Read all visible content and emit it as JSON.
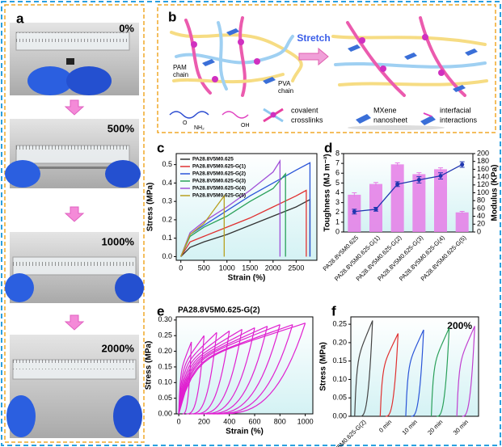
{
  "panel_a": {
    "label": "a",
    "strain_labels": [
      "0%",
      "500%",
      "1000%",
      "2000%"
    ]
  },
  "panel_b": {
    "label": "b",
    "stretch": "Stretch",
    "pam_chain": [
      "PAM",
      "chain"
    ],
    "pva_chain": [
      "PVA",
      "chain"
    ],
    "chem_labels": [
      "O",
      "NH₂",
      "OH"
    ],
    "legend": [
      [
        "covalent",
        "crosslinks"
      ],
      [
        "MXene",
        "nanosheet"
      ],
      [
        "interfacial",
        "interactions"
      ]
    ]
  },
  "chart_data": [
    {
      "type": "line",
      "label": "c",
      "ylabel": "Stress (MPa)",
      "xlabel": "Strain (%)",
      "xlim": [
        -100,
        2950
      ],
      "xticks": [
        0,
        500,
        1000,
        1500,
        2000,
        2500
      ],
      "ylim": [
        -0.02,
        0.56
      ],
      "yticks": [
        {
          "value": 0,
          "label": "0.0"
        },
        0.1,
        0.2,
        0.3,
        0.4,
        0.5
      ],
      "legend": "upper left",
      "series": [
        {
          "name": "PA28.8V5M0.625",
          "color": "#333333",
          "x": [
            0,
            200,
            500,
            1000,
            1500,
            2000,
            2500,
            2800,
            2800
          ],
          "values": [
            0,
            0.05,
            0.08,
            0.12,
            0.17,
            0.22,
            0.27,
            0.31,
            0
          ]
        },
        {
          "name": "PA28.8V5M0.625-G(1)",
          "color": "#e03030",
          "x": [
            0,
            200,
            500,
            1000,
            1500,
            2000,
            2500,
            2720,
            2720
          ],
          "values": [
            0,
            0.08,
            0.11,
            0.16,
            0.21,
            0.27,
            0.33,
            0.36,
            0
          ]
        },
        {
          "name": "PA28.8V5M0.625-G(2)",
          "color": "#2a55d8",
          "x": [
            0,
            200,
            500,
            1000,
            1500,
            2000,
            2500,
            2800,
            2800
          ],
          "values": [
            0,
            0.12,
            0.17,
            0.25,
            0.33,
            0.4,
            0.47,
            0.51,
            0
          ]
        },
        {
          "name": "PA28.8V5M0.625-G(3)",
          "color": "#2aa05a",
          "x": [
            0,
            200,
            500,
            1000,
            1500,
            2000,
            2270,
            2270
          ],
          "values": [
            0,
            0.11,
            0.16,
            0.22,
            0.3,
            0.37,
            0.45,
            0
          ]
        },
        {
          "name": "PA28.8V5M0.625-G(4)",
          "color": "#a050d8",
          "x": [
            0,
            200,
            500,
            1000,
            1500,
            2000,
            2150,
            2150
          ],
          "values": [
            0,
            0.13,
            0.19,
            0.27,
            0.36,
            0.46,
            0.52,
            0
          ]
        },
        {
          "name": "PA28.8V5M0.625-G(5)",
          "color": "#b8a020",
          "x": [
            0,
            200,
            500,
            940,
            940
          ],
          "values": [
            0,
            0.12,
            0.18,
            0.33,
            0
          ]
        }
      ]
    },
    {
      "type": "bar",
      "label": "d",
      "ylabel": "Toughness (MJ m⁻³)",
      "y2label": "Modulus (KPa)",
      "categories": [
        "PA28.8V5M0.625",
        "PA28.8V5M0.625-G(1)",
        "PA28.8V5M0.625-G(2)",
        "PA28.8V5M0.625-G(3)",
        "PA28.8V5M0.625-G(4)",
        "PA28.8V5M0.625-G(5)"
      ],
      "ylim": [
        0,
        8
      ],
      "yticks": [
        0,
        1,
        2,
        3,
        4,
        5,
        6,
        7,
        8
      ],
      "y2lim": [
        0,
        200
      ],
      "y2ticks": [
        0,
        20,
        40,
        60,
        80,
        100,
        120,
        140,
        160,
        180,
        200
      ],
      "series": [
        {
          "kind": "bar",
          "color": "#e57be6",
          "values": [
            3.8,
            4.9,
            6.9,
            5.9,
            6.4,
            2.0
          ],
          "errors": [
            0.2,
            0.15,
            0.15,
            0.15,
            0.15,
            0.1
          ]
        },
        {
          "kind": "line",
          "axis": "y2",
          "color": "#1f36b0",
          "values": [
            52,
            58,
            122,
            133,
            143,
            172
          ],
          "errors": [
            6,
            5,
            6,
            8,
            8,
            7
          ]
        }
      ]
    },
    {
      "type": "hysteresis",
      "label": "e",
      "title": "PA28.8V5M0.625-G(2)",
      "ylabel": "Stress (MPa)",
      "xlabel": "Strain (%)",
      "xlim": [
        -20,
        1060
      ],
      "xticks": [
        0,
        200,
        400,
        600,
        800,
        1000
      ],
      "ylim": [
        0,
        0.31
      ],
      "yticks": [
        {
          "value": 0,
          "label": "0.00"
        },
        0.05,
        {
          "value": 0.1,
          "label": "0.10"
        },
        0.15,
        {
          "value": 0.2,
          "label": "0.20"
        },
        0.25,
        {
          "value": 0.3,
          "label": "0.30"
        }
      ],
      "series": [
        {
          "color": "#e020d0",
          "x": [
            100,
            200,
            300,
            400,
            500,
            600,
            700,
            800,
            900,
            1000
          ],
          "values": [
            0.23,
            0.25,
            0.26,
            0.265,
            0.27,
            0.275,
            0.28,
            0.285,
            0.285,
            0.29
          ]
        }
      ]
    },
    {
      "type": "hysteresis",
      "label": "f",
      "annotation": "200%",
      "ylabel": "Stress (MPa)",
      "categories": [
        "PA28.8V5M0.625-G(2)",
        "0 min",
        "10 min",
        "20 min",
        "30 min"
      ],
      "ylim": [
        0,
        0.27
      ],
      "yticks": [
        {
          "value": 0,
          "label": "0.00"
        },
        0.05,
        {
          "value": 0.1,
          "label": "0.10"
        },
        0.15,
        {
          "value": 0.2,
          "label": "0.20"
        },
        0.25
      ],
      "series": [
        {
          "colors": [
            "#444444",
            "#e03030",
            "#2a55d8",
            "#2aa05a",
            "#c040d0"
          ],
          "values": [
            0.26,
            0.225,
            0.235,
            0.24,
            0.245
          ]
        }
      ]
    }
  ]
}
